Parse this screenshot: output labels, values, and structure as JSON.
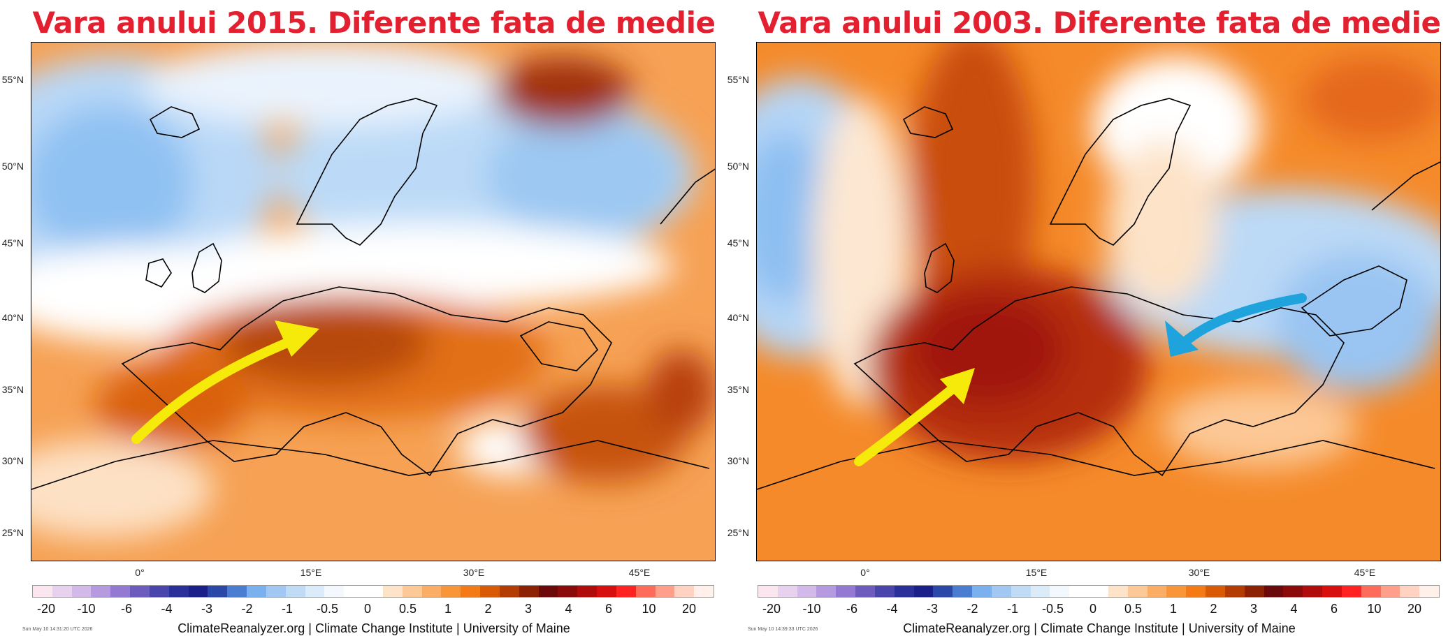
{
  "left": {
    "title": "Vara anului 2015. Diferente fata de medie",
    "timestamp": "Sun May 10 14:31:20 UTC 2026"
  },
  "right": {
    "title": "Vara anului 2003. Diferente fata de medie",
    "timestamp": "Sun May 10 14:39:33 UTC 2026"
  },
  "lat_labels": [
    "55°N",
    "50°N",
    "45°N",
    "40°N",
    "35°N",
    "30°N",
    "25°N"
  ],
  "lon_labels": [
    "0°",
    "15°E",
    "30°E",
    "45°E"
  ],
  "colorbar": {
    "labels": [
      "-20",
      "-10",
      "-6",
      "-4",
      "-3",
      "-2",
      "-1",
      "-0.5",
      "0",
      "0.5",
      "1",
      "2",
      "3",
      "4",
      "6",
      "10",
      "20"
    ],
    "colors": [
      "#fbe6ef",
      "#e6d2ee",
      "#d3b9ea",
      "#b69ae0",
      "#9379d1",
      "#6d5bbd",
      "#4a45aa",
      "#2b2f9a",
      "#1b1f8a",
      "#2a48a8",
      "#4a7dd1",
      "#7bb0ee",
      "#a0c8f2",
      "#c0dbf6",
      "#dcebfa",
      "#f2f8fe",
      "#ffffff",
      "#ffffff",
      "#fde3c8",
      "#fcc895",
      "#fbad66",
      "#f99539",
      "#f37a14",
      "#d95a06",
      "#b33c05",
      "#8c2203",
      "#6a0a0a",
      "#8b0b0b",
      "#b00c0c",
      "#d80f0f",
      "#ff2222",
      "#ff6b5b",
      "#ff9f8a",
      "#ffd2c2",
      "#fff0ea"
    ]
  },
  "credit": "ClimateReanalyzer.org | Climate Change Institute | University of Maine",
  "arrows": {
    "yellow_color": "#f5ea0a",
    "cyan_color": "#1ea3dc"
  }
}
